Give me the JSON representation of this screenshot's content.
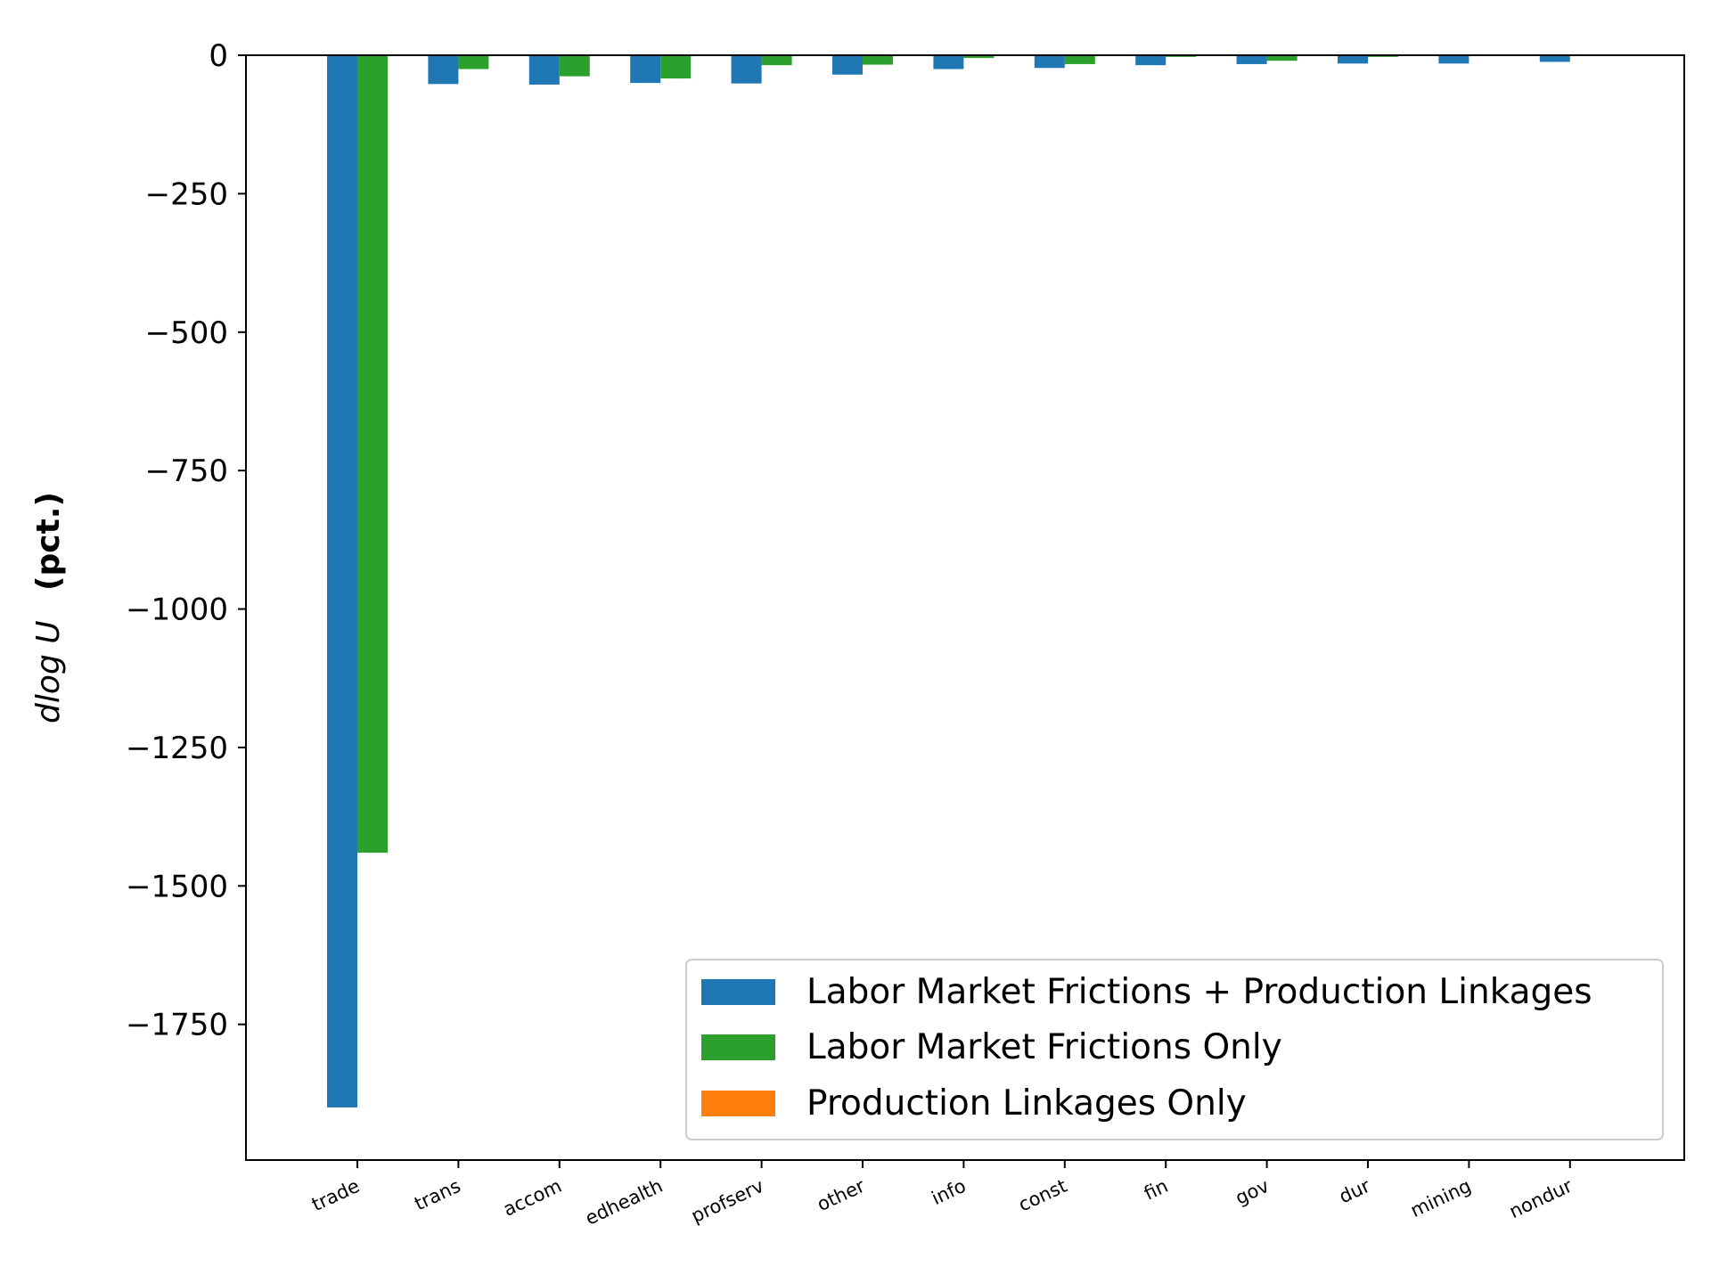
{
  "chart_data": {
    "type": "bar",
    "ylabel_symbol": "dlog U",
    "ylabel_unit": "(pct.)",
    "categories": [
      "trade",
      "trans",
      "accom",
      "edhealth",
      "profserv",
      "other",
      "info",
      "const",
      "fin",
      "gov",
      "dur",
      "mining",
      "nondur"
    ],
    "series": [
      {
        "name": "Labor Market Frictions + Production Linkages",
        "color": "#1f77b4",
        "values": [
          -1900,
          -52,
          -53,
          -50,
          -51,
          -35,
          -25,
          -23,
          -18,
          -16,
          -15,
          -15,
          -12
        ]
      },
      {
        "name": "Labor Market Frictions Only",
        "color": "#2ca02c",
        "values": [
          -1440,
          -25,
          -38,
          -42,
          -18,
          -17,
          -5,
          -16,
          -3,
          -10,
          -3,
          0,
          0
        ]
      },
      {
        "name": "Production Linkages Only",
        "color": "#ff7f0e",
        "values": [
          0,
          0,
          0,
          0,
          0,
          0,
          0,
          0,
          0,
          0,
          0,
          0,
          0
        ]
      }
    ],
    "yticks": [
      0,
      -250,
      -500,
      -750,
      -1000,
      -1250,
      -1500,
      -1750
    ],
    "ylim": [
      -1995,
      0
    ],
    "grid": false,
    "legend_position": "lower-right"
  }
}
